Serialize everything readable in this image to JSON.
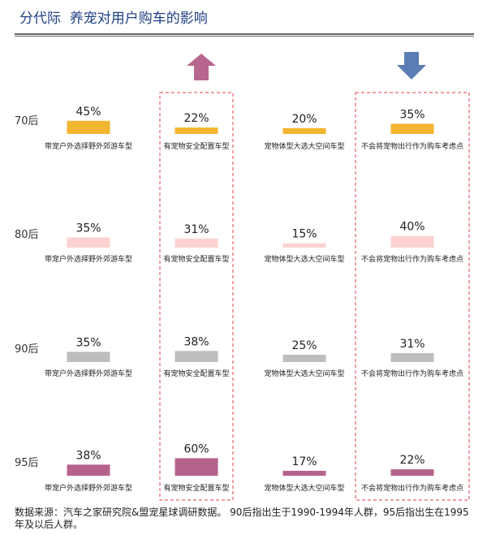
{
  "title": "分代际  养宠对用户购车的影响",
  "source": "数据来源：汽车之家研究院&盟宠星球调研数据。 90后指出生于1990-1994年人群，95后指出生在1995年及以后人群。",
  "colors": {
    "title": "#1f3f86",
    "up_arrow": "#b7678f",
    "down_arrow": "#5b7db5",
    "highlight_border": "#e0404a"
  },
  "icons": [
    "arrow-up-icon",
    "arrow-down-icon"
  ],
  "chart_data": {
    "type": "bar",
    "groups": [
      "70后",
      "80后",
      "90后",
      "95后"
    ],
    "group_colors": [
      "#f2b631",
      "#fbd2d0",
      "#bdbdbd",
      "#b5628d"
    ],
    "categories": [
      "带宠户外选择野外郊游车型",
      "有宠物安全配置车型",
      "宠物体型大选大空间车型",
      "不会将宠物出行作为购车考虑点"
    ],
    "series": [
      {
        "name": "70后",
        "values": [
          45,
          22,
          20,
          35
        ]
      },
      {
        "name": "80后",
        "values": [
          35,
          31,
          15,
          40
        ]
      },
      {
        "name": "90后",
        "values": [
          35,
          38,
          25,
          31
        ]
      },
      {
        "name": "95后",
        "values": [
          38,
          60,
          17,
          22
        ]
      }
    ],
    "value_suffix": "%",
    "highlighted_columns": [
      1,
      3
    ]
  }
}
